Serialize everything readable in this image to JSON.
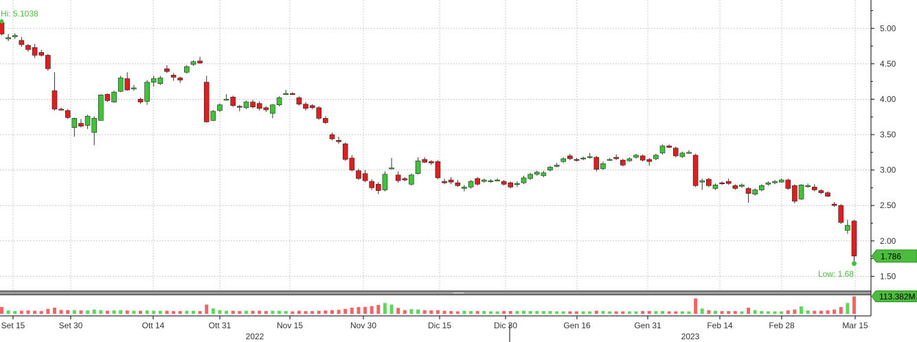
{
  "chart_data": {
    "type": "candlestick",
    "price_axis": {
      "ylim": [
        1.3,
        5.4
      ],
      "ticks": [
        "5.00",
        "4.50",
        "4.00",
        "3.50",
        "3.00",
        "2.50",
        "2.00",
        "1.50"
      ]
    },
    "x_ticks": [
      "Set 15",
      "Set 30",
      "Ott 14",
      "Ott 31",
      "Nov 15",
      "Nov 30",
      "Dic 15",
      "Dic 30",
      "Gen 16",
      "Gen 31",
      "Feb 14",
      "Feb 28",
      "Mar 15"
    ],
    "year_labels": [
      "2022",
      "2023"
    ],
    "annotations": {
      "high": "Hi: 5.1038",
      "low": "Low: 1.68"
    },
    "last_price_label": "1.786",
    "last_volume_label": "113.382M",
    "volume_axis": {
      "ylim": [
        0,
        120
      ]
    },
    "colors": {
      "up": "#3ec33a",
      "down": "#e01e1e",
      "grid": "#c8c8c8",
      "price_tag": "#4cbc3c"
    },
    "candles": [
      [
        5.08,
        5.1,
        4.9,
        4.92,
        44
      ],
      [
        4.85,
        4.92,
        4.82,
        4.87,
        22
      ],
      [
        4.88,
        4.93,
        4.85,
        4.9,
        18
      ],
      [
        4.83,
        4.88,
        4.74,
        4.77,
        20
      ],
      [
        4.76,
        4.78,
        4.67,
        4.7,
        22
      ],
      [
        4.73,
        4.78,
        4.58,
        4.62,
        20
      ],
      [
        4.66,
        4.7,
        4.6,
        4.62,
        18
      ],
      [
        4.62,
        4.64,
        4.4,
        4.43,
        32
      ],
      [
        4.12,
        4.38,
        3.84,
        3.86,
        40
      ],
      [
        3.86,
        3.88,
        3.84,
        3.85,
        25
      ],
      [
        3.84,
        3.86,
        3.72,
        3.74,
        24
      ],
      [
        3.6,
        3.74,
        3.47,
        3.73,
        24
      ],
      [
        3.66,
        3.72,
        3.6,
        3.62,
        22
      ],
      [
        3.63,
        3.78,
        3.58,
        3.76,
        22
      ],
      [
        3.53,
        3.76,
        3.35,
        3.73,
        28
      ],
      [
        3.7,
        4.07,
        3.7,
        4.06,
        24
      ],
      [
        4.07,
        4.08,
        3.96,
        3.98,
        20
      ],
      [
        3.96,
        4.12,
        3.95,
        4.1,
        22
      ],
      [
        4.11,
        4.33,
        4.1,
        4.3,
        24
      ],
      [
        4.29,
        4.38,
        4.12,
        4.13,
        22
      ],
      [
        4.15,
        4.2,
        4.12,
        4.16,
        20
      ],
      [
        4.0,
        4.02,
        3.93,
        3.96,
        20
      ],
      [
        3.97,
        4.27,
        3.92,
        4.24,
        22
      ],
      [
        4.24,
        4.33,
        4.18,
        4.29,
        20
      ],
      [
        4.22,
        4.33,
        4.2,
        4.3,
        20
      ],
      [
        4.43,
        4.48,
        4.37,
        4.39,
        20
      ],
      [
        4.34,
        4.37,
        4.26,
        4.31,
        18
      ],
      [
        4.3,
        4.32,
        4.23,
        4.27,
        18
      ],
      [
        4.38,
        4.48,
        4.36,
        4.46,
        20
      ],
      [
        4.49,
        4.55,
        4.47,
        4.53,
        20
      ],
      [
        4.54,
        4.6,
        4.5,
        4.51,
        18
      ],
      [
        4.24,
        4.33,
        3.67,
        3.68,
        60
      ],
      [
        3.7,
        3.85,
        3.69,
        3.83,
        35
      ],
      [
        3.84,
        3.94,
        3.82,
        3.92,
        24
      ],
      [
        4.0,
        4.07,
        3.98,
        4.0,
        20
      ],
      [
        4.03,
        4.05,
        3.89,
        3.91,
        20
      ],
      [
        3.9,
        3.92,
        3.83,
        3.89,
        18
      ],
      [
        3.88,
        3.98,
        3.86,
        3.96,
        20
      ],
      [
        3.96,
        3.99,
        3.87,
        3.89,
        20
      ],
      [
        3.94,
        3.97,
        3.84,
        3.87,
        20
      ],
      [
        3.88,
        3.9,
        3.82,
        3.85,
        18
      ],
      [
        3.8,
        3.93,
        3.73,
        3.92,
        20
      ],
      [
        3.92,
        4.04,
        3.9,
        4.02,
        20
      ],
      [
        4.08,
        4.13,
        4.06,
        4.08,
        18
      ],
      [
        4.08,
        4.1,
        4.06,
        4.07,
        16
      ],
      [
        4.02,
        4.04,
        3.91,
        3.93,
        20
      ],
      [
        3.93,
        3.96,
        3.84,
        3.87,
        18
      ],
      [
        3.91,
        3.93,
        3.86,
        3.88,
        18
      ],
      [
        3.88,
        3.9,
        3.71,
        3.73,
        20
      ],
      [
        3.73,
        3.76,
        3.65,
        3.67,
        22
      ],
      [
        3.5,
        3.53,
        3.42,
        3.44,
        24
      ],
      [
        3.42,
        3.47,
        3.37,
        3.4,
        26
      ],
      [
        3.37,
        3.39,
        3.13,
        3.15,
        32
      ],
      [
        3.17,
        3.21,
        2.98,
        3.0,
        40
      ],
      [
        2.99,
        3.02,
        2.86,
        2.88,
        44
      ],
      [
        2.95,
        3.0,
        2.83,
        2.85,
        45
      ],
      [
        2.84,
        2.87,
        2.72,
        2.75,
        50
      ],
      [
        2.8,
        2.83,
        2.66,
        2.71,
        58
      ],
      [
        2.72,
        2.98,
        2.7,
        2.94,
        70
      ],
      [
        3.03,
        3.17,
        3.01,
        3.03,
        60
      ],
      [
        2.93,
        2.98,
        2.82,
        2.85,
        38
      ],
      [
        2.88,
        2.9,
        2.84,
        2.86,
        24
      ],
      [
        2.8,
        2.95,
        2.78,
        2.93,
        30
      ],
      [
        2.95,
        3.18,
        2.94,
        3.13,
        28
      ],
      [
        3.15,
        3.18,
        3.1,
        3.11,
        24
      ],
      [
        3.12,
        3.14,
        3.07,
        3.1,
        22
      ],
      [
        3.12,
        3.14,
        2.87,
        2.89,
        24
      ],
      [
        2.84,
        2.88,
        2.8,
        2.82,
        20
      ],
      [
        2.86,
        2.9,
        2.8,
        2.83,
        18
      ],
      [
        2.82,
        2.86,
        2.76,
        2.78,
        16
      ],
      [
        2.74,
        2.79,
        2.7,
        2.76,
        20
      ],
      [
        2.76,
        2.86,
        2.74,
        2.84,
        18
      ],
      [
        2.88,
        2.9,
        2.78,
        2.8,
        18
      ],
      [
        2.84,
        2.88,
        2.82,
        2.86,
        18
      ],
      [
        2.84,
        2.87,
        2.82,
        2.85,
        16
      ],
      [
        2.86,
        2.88,
        2.84,
        2.86,
        16
      ],
      [
        2.84,
        2.86,
        2.78,
        2.8,
        18
      ],
      [
        2.82,
        2.84,
        2.74,
        2.76,
        18
      ],
      [
        2.8,
        2.84,
        2.76,
        2.81,
        18
      ],
      [
        2.82,
        2.92,
        2.8,
        2.89,
        20
      ],
      [
        2.88,
        2.96,
        2.86,
        2.94,
        18
      ],
      [
        2.94,
        2.99,
        2.92,
        2.97,
        18
      ],
      [
        2.92,
        2.99,
        2.9,
        2.96,
        18
      ],
      [
        3.0,
        3.06,
        2.98,
        3.04,
        18
      ],
      [
        3.05,
        3.1,
        3.04,
        3.07,
        16
      ],
      [
        3.12,
        3.18,
        3.1,
        3.16,
        16
      ],
      [
        3.2,
        3.23,
        3.14,
        3.16,
        16
      ],
      [
        3.15,
        3.17,
        3.12,
        3.14,
        16
      ],
      [
        3.16,
        3.19,
        3.14,
        3.17,
        16
      ],
      [
        3.18,
        3.24,
        3.16,
        3.19,
        16
      ],
      [
        3.18,
        3.2,
        2.98,
        3.01,
        20
      ],
      [
        3.02,
        3.12,
        3.0,
        3.09,
        18
      ],
      [
        3.15,
        3.17,
        3.13,
        3.15,
        16
      ],
      [
        3.18,
        3.22,
        3.14,
        3.16,
        16
      ],
      [
        3.14,
        3.16,
        3.05,
        3.07,
        16
      ],
      [
        3.13,
        3.18,
        3.12,
        3.16,
        16
      ],
      [
        3.18,
        3.23,
        3.16,
        3.21,
        16
      ],
      [
        3.2,
        3.22,
        3.12,
        3.14,
        18
      ],
      [
        3.15,
        3.17,
        3.06,
        3.12,
        18
      ],
      [
        3.16,
        3.23,
        3.14,
        3.21,
        18
      ],
      [
        3.24,
        3.36,
        3.22,
        3.34,
        18
      ],
      [
        3.34,
        3.36,
        3.31,
        3.32,
        16
      ],
      [
        3.31,
        3.33,
        3.18,
        3.2,
        16
      ],
      [
        3.19,
        3.26,
        3.17,
        3.24,
        16
      ],
      [
        3.25,
        3.28,
        3.23,
        3.25,
        16
      ],
      [
        3.21,
        3.23,
        2.76,
        2.78,
        100
      ],
      [
        2.83,
        2.88,
        2.72,
        2.85,
        34
      ],
      [
        2.87,
        2.89,
        2.76,
        2.78,
        24
      ],
      [
        2.74,
        2.81,
        2.72,
        2.79,
        20
      ],
      [
        2.82,
        2.84,
        2.79,
        2.81,
        18
      ],
      [
        2.84,
        2.88,
        2.79,
        2.81,
        18
      ],
      [
        2.78,
        2.8,
        2.72,
        2.74,
        18
      ],
      [
        2.77,
        2.81,
        2.75,
        2.79,
        16
      ],
      [
        2.74,
        2.76,
        2.54,
        2.67,
        40
      ],
      [
        2.66,
        2.74,
        2.64,
        2.72,
        24
      ],
      [
        2.72,
        2.8,
        2.7,
        2.78,
        18
      ],
      [
        2.8,
        2.84,
        2.78,
        2.82,
        16
      ],
      [
        2.82,
        2.86,
        2.8,
        2.84,
        16
      ],
      [
        2.83,
        2.88,
        2.82,
        2.86,
        16
      ],
      [
        2.86,
        2.88,
        2.72,
        2.74,
        22
      ],
      [
        2.78,
        2.8,
        2.53,
        2.56,
        28
      ],
      [
        2.59,
        2.8,
        2.58,
        2.79,
        48
      ],
      [
        2.77,
        2.81,
        2.75,
        2.78,
        22
      ],
      [
        2.76,
        2.8,
        2.7,
        2.72,
        20
      ],
      [
        2.71,
        2.73,
        2.66,
        2.68,
        20
      ],
      [
        2.68,
        2.7,
        2.62,
        2.63,
        22
      ],
      [
        2.52,
        2.55,
        2.48,
        2.5,
        28
      ],
      [
        2.5,
        2.52,
        2.24,
        2.26,
        44
      ],
      [
        2.15,
        2.3,
        2.1,
        2.22,
        70
      ],
      [
        2.28,
        2.3,
        1.68,
        1.786,
        113.382
      ]
    ]
  }
}
